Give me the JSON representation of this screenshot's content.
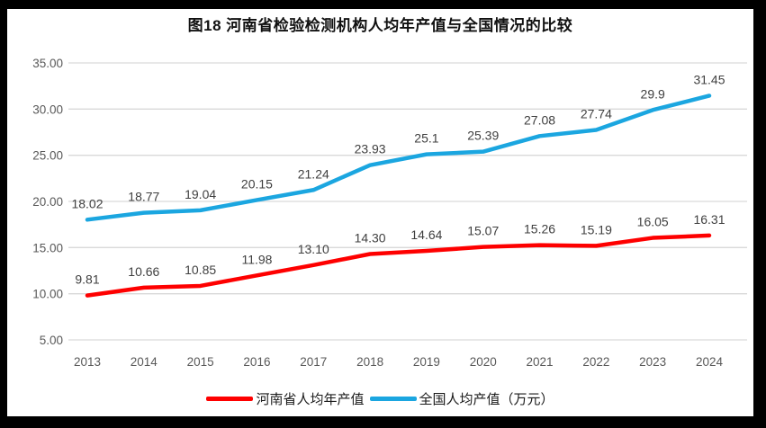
{
  "chart_data": {
    "type": "line",
    "title": "图18  河南省检验检测机构人均年产值与全国情况的比较",
    "xlabel": "",
    "ylabel": "",
    "categories": [
      "2013",
      "2014",
      "2015",
      "2016",
      "2017",
      "2018",
      "2019",
      "2020",
      "2021",
      "2022",
      "2023",
      "2024"
    ],
    "series": [
      {
        "name": "河南省人均年产值",
        "color": "#fe0000",
        "values": [
          9.81,
          10.66,
          10.85,
          11.98,
          13.1,
          14.3,
          14.64,
          15.07,
          15.26,
          15.19,
          16.05,
          16.31
        ],
        "labels": [
          "9.81",
          "10.66",
          "10.85",
          "11.98",
          "13.10",
          "14.30",
          "14.64",
          "15.07",
          "15.26",
          "15.19",
          "16.05",
          "16.31"
        ]
      },
      {
        "name": "全国人均产值（万元）",
        "color": "#1ba6e0",
        "values": [
          18.02,
          18.77,
          19.04,
          20.15,
          21.24,
          23.93,
          25.1,
          25.39,
          27.08,
          27.74,
          29.9,
          31.45
        ],
        "labels": [
          "18.02",
          "18.77",
          "19.04",
          "20.15",
          "21.24",
          "23.93",
          "25.1",
          "25.39",
          "27.08",
          "27.74",
          "29.9",
          "31.45"
        ]
      }
    ],
    "ylim": [
      5,
      35
    ],
    "yticks": [
      {
        "value": 5,
        "label": "5.00"
      },
      {
        "value": 10,
        "label": "10.00"
      },
      {
        "value": 15,
        "label": "15.00"
      },
      {
        "value": 20,
        "label": "20.00"
      },
      {
        "value": 25,
        "label": "25.00"
      },
      {
        "value": 30,
        "label": "30.00"
      },
      {
        "value": 35,
        "label": "35.00"
      }
    ],
    "grid": true,
    "legend_position": "bottom"
  },
  "colors": {
    "grid": "#d9d9d9",
    "tick_label": "#595959",
    "data_label": "#3f3f3f",
    "title": "#111111",
    "frame": "#000000",
    "background": "#ffffff"
  }
}
